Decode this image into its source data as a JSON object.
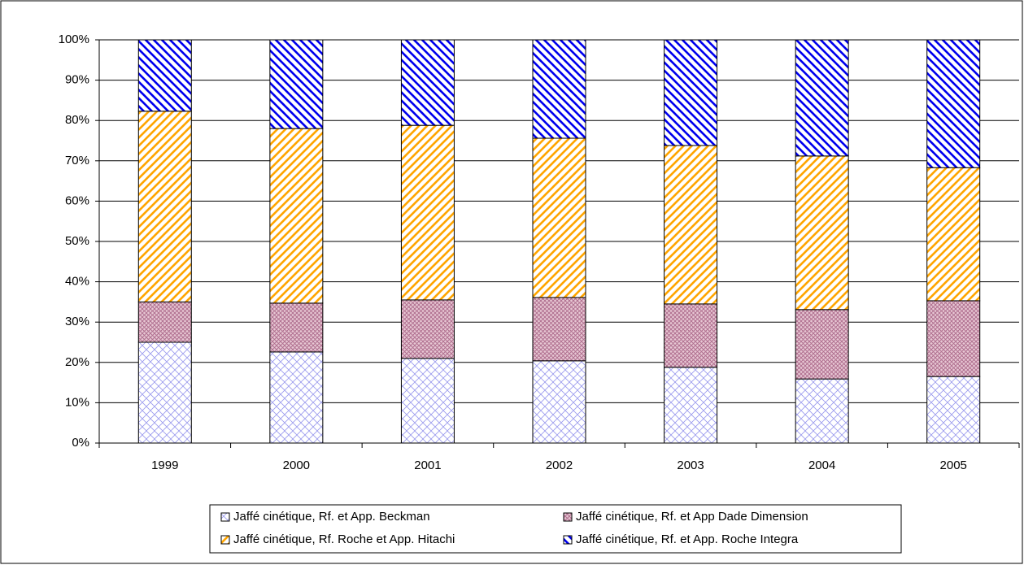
{
  "chart_data": {
    "type": "stacked_bar",
    "categories": [
      "1999",
      "2000",
      "2001",
      "2002",
      "2003",
      "2004",
      "2005"
    ],
    "series": [
      {
        "name": "Jaffé cinétique, Rf. et App. Beckman",
        "color": "#9999ee",
        "values": [
          25,
          22.6,
          21,
          20.4,
          18.8,
          15.9,
          16.5
        ]
      },
      {
        "name": "Jaffé cinétique, Rf. et App Dade Dimension",
        "color": "#b07090",
        "values": [
          10,
          12.1,
          14.5,
          15.7,
          15.7,
          17.2,
          18.8
        ]
      },
      {
        "name": "Jaffé cinétique, Rf. Roche et App. Hitachi",
        "color": "#ffa500",
        "values": [
          47.3,
          43.3,
          43.3,
          39.5,
          39.3,
          38.1,
          33
        ]
      },
      {
        "name": "Jaffé cinétique, Rf. et App. Roche Integra",
        "color": "#0000ee",
        "values": [
          17.7,
          22,
          21.2,
          24.4,
          26.2,
          28.8,
          31.7
        ]
      }
    ],
    "ylim": [
      0,
      100
    ],
    "yticks": [
      {
        "value": 0,
        "label": "0%"
      },
      {
        "value": 10,
        "label": "10%"
      },
      {
        "value": 20,
        "label": "20%"
      },
      {
        "value": 30,
        "label": "30%"
      },
      {
        "value": 40,
        "label": "40%"
      },
      {
        "value": 50,
        "label": "50%"
      },
      {
        "value": 60,
        "label": "60%"
      },
      {
        "value": 70,
        "label": "70%"
      },
      {
        "value": 80,
        "label": "80%"
      },
      {
        "value": 90,
        "label": "90%"
      },
      {
        "value": 100,
        "label": "100%"
      }
    ],
    "grid": true
  }
}
